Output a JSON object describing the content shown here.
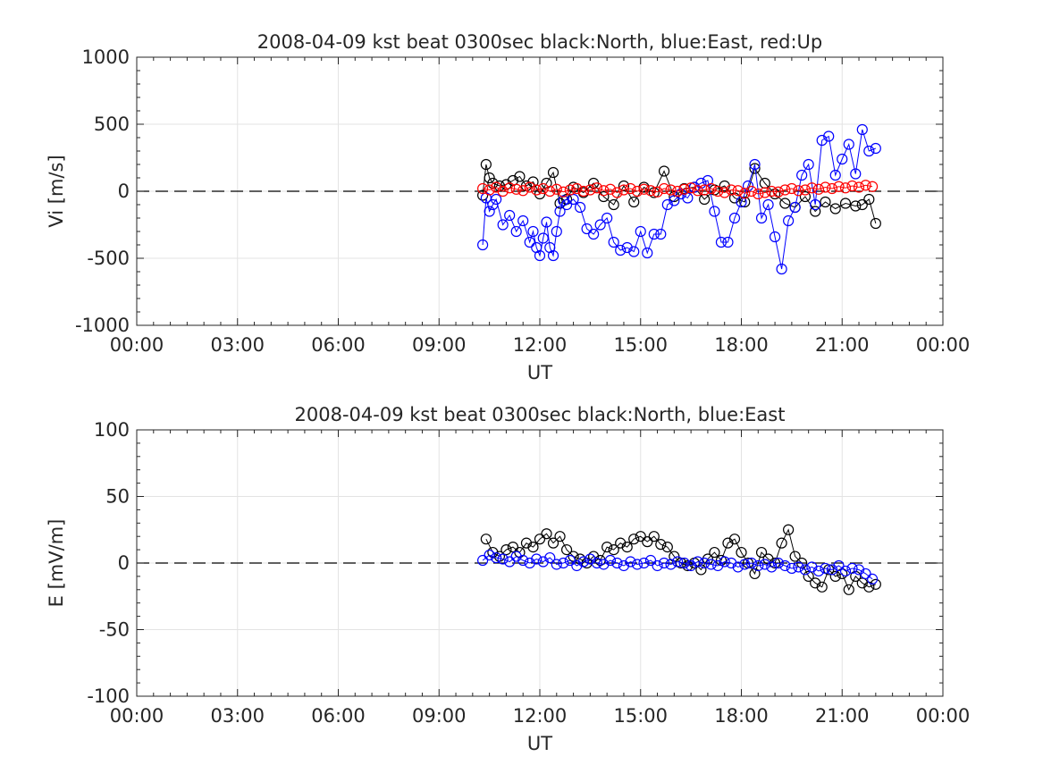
{
  "chart_data": [
    {
      "type": "scatter",
      "title": "2008-04-09 kst beat 0300sec black:North, blue:East, red:Up",
      "xlabel": "UT",
      "ylabel": "Vi [m/s]",
      "xlim": [
        0,
        24
      ],
      "ylim": [
        -1000,
        1000
      ],
      "x_tick_labels": [
        "00:00",
        "03:00",
        "06:00",
        "09:00",
        "12:00",
        "15:00",
        "18:00",
        "21:00",
        "00:00"
      ],
      "y_tick_labels": [
        "-1000",
        "-500",
        "0",
        "500",
        "1000"
      ],
      "grid": true,
      "reference_line": 0,
      "series": [
        {
          "color": "#000000",
          "x": [
            10.3,
            10.4,
            10.5,
            10.6,
            10.8,
            11.0,
            11.2,
            11.4,
            11.6,
            11.8,
            12.0,
            12.2,
            12.4,
            12.6,
            12.8,
            13.0,
            13.3,
            13.6,
            13.9,
            14.2,
            14.5,
            14.8,
            15.1,
            15.4,
            15.7,
            16.0,
            16.3,
            16.6,
            16.9,
            17.2,
            17.5,
            17.8,
            18.1,
            18.4,
            18.7,
            19.0,
            19.3,
            19.6,
            19.9,
            20.2,
            20.5,
            20.8,
            21.1,
            21.4,
            21.6,
            21.8,
            22.0
          ],
          "y": [
            -30,
            200,
            100,
            60,
            40,
            50,
            80,
            110,
            40,
            70,
            -20,
            60,
            140,
            -90,
            -60,
            30,
            -10,
            60,
            -40,
            -100,
            40,
            -80,
            30,
            -10,
            150,
            -40,
            20,
            30,
            -60,
            10,
            40,
            -50,
            -80,
            170,
            60,
            -20,
            -90,
            -120,
            -40,
            -150,
            -80,
            -130,
            -90,
            -110,
            -100,
            -60,
            -240
          ]
        },
        {
          "color": "#0000ff",
          "x": [
            10.3,
            10.4,
            10.5,
            10.6,
            10.7,
            10.9,
            11.1,
            11.3,
            11.5,
            11.7,
            11.8,
            11.9,
            12.0,
            12.1,
            12.2,
            12.3,
            12.4,
            12.5,
            12.6,
            12.7,
            12.8,
            13.0,
            13.2,
            13.4,
            13.6,
            13.8,
            14.0,
            14.2,
            14.4,
            14.6,
            14.8,
            15.0,
            15.2,
            15.4,
            15.6,
            15.8,
            16.0,
            16.2,
            16.4,
            16.6,
            16.8,
            17.0,
            17.2,
            17.4,
            17.6,
            17.8,
            18.0,
            18.2,
            18.4,
            18.6,
            18.8,
            19.0,
            19.2,
            19.4,
            19.6,
            19.8,
            20.0,
            20.2,
            20.4,
            20.6,
            20.8,
            21.0,
            21.2,
            21.4,
            21.6,
            21.8,
            22.0
          ],
          "y": [
            -400,
            -50,
            -150,
            -100,
            -60,
            -250,
            -180,
            -300,
            -220,
            -380,
            -300,
            -420,
            -480,
            -350,
            -230,
            -420,
            -480,
            -300,
            -150,
            -70,
            -100,
            -60,
            -120,
            -280,
            -320,
            -250,
            -200,
            -380,
            -440,
            -420,
            -450,
            -300,
            -460,
            -320,
            -320,
            -100,
            -70,
            -20,
            -50,
            30,
            60,
            80,
            -150,
            -380,
            -380,
            -200,
            -80,
            40,
            200,
            -200,
            -100,
            -340,
            -580,
            -220,
            -120,
            120,
            200,
            -100,
            380,
            410,
            120,
            240,
            350,
            130,
            460,
            300,
            320
          ]
        },
        {
          "color": "#ff0000",
          "x": [
            10.3,
            10.5,
            10.7,
            10.9,
            11.1,
            11.3,
            11.5,
            11.7,
            11.9,
            12.1,
            12.3,
            12.5,
            12.7,
            12.9,
            13.1,
            13.3,
            13.5,
            13.7,
            13.9,
            14.1,
            14.3,
            14.5,
            14.7,
            14.9,
            15.1,
            15.3,
            15.5,
            15.7,
            15.9,
            16.1,
            16.3,
            16.5,
            16.7,
            16.9,
            17.1,
            17.3,
            17.5,
            17.7,
            17.9,
            18.1,
            18.3,
            18.5,
            18.7,
            18.9,
            19.1,
            19.3,
            19.5,
            19.7,
            19.9,
            20.1,
            20.3,
            20.5,
            20.7,
            20.9,
            21.1,
            21.3,
            21.5,
            21.7,
            21.9
          ],
          "y": [
            20,
            10,
            30,
            0,
            25,
            15,
            5,
            30,
            10,
            20,
            0,
            15,
            -5,
            10,
            20,
            0,
            10,
            25,
            5,
            15,
            -10,
            10,
            20,
            0,
            15,
            5,
            -5,
            20,
            10,
            0,
            15,
            25,
            5,
            10,
            20,
            0,
            -10,
            10,
            5,
            -15,
            0,
            -20,
            -10,
            0,
            -5,
            10,
            20,
            5,
            10,
            25,
            15,
            30,
            20,
            35,
            25,
            40,
            30,
            45,
            35
          ]
        }
      ]
    },
    {
      "type": "scatter",
      "title": "2008-04-09 kst beat 0300sec black:North, blue:East",
      "xlabel": "UT",
      "ylabel": "E [mV/m]",
      "xlim": [
        0,
        24
      ],
      "ylim": [
        -100,
        100
      ],
      "x_tick_labels": [
        "00:00",
        "03:00",
        "06:00",
        "09:00",
        "12:00",
        "15:00",
        "18:00",
        "21:00",
        "00:00"
      ],
      "y_tick_labels": [
        "-100",
        "-50",
        "0",
        "50",
        "100"
      ],
      "grid": true,
      "reference_line": 0,
      "series": [
        {
          "color": "#000000",
          "x": [
            10.4,
            10.6,
            10.8,
            11.0,
            11.2,
            11.4,
            11.6,
            11.8,
            12.0,
            12.2,
            12.4,
            12.6,
            12.8,
            13.0,
            13.2,
            13.4,
            13.6,
            13.8,
            14.0,
            14.2,
            14.4,
            14.6,
            14.8,
            15.0,
            15.2,
            15.4,
            15.6,
            15.8,
            16.0,
            16.2,
            16.4,
            16.6,
            16.8,
            17.0,
            17.2,
            17.4,
            17.6,
            17.8,
            18.0,
            18.2,
            18.4,
            18.6,
            18.8,
            19.0,
            19.2,
            19.4,
            19.6,
            19.8,
            20.0,
            20.2,
            20.4,
            20.6,
            20.8,
            21.0,
            21.2,
            21.4,
            21.6,
            21.8,
            22.0
          ],
          "y": [
            18,
            8,
            5,
            10,
            12,
            8,
            15,
            12,
            18,
            22,
            15,
            20,
            10,
            5,
            3,
            0,
            5,
            2,
            12,
            10,
            15,
            12,
            18,
            20,
            16,
            20,
            14,
            12,
            5,
            0,
            -2,
            0,
            -5,
            3,
            8,
            2,
            15,
            18,
            8,
            0,
            -8,
            8,
            3,
            0,
            15,
            25,
            5,
            0,
            -10,
            -15,
            -18,
            -5,
            -10,
            -8,
            -20,
            -10,
            -15,
            -18,
            -16
          ]
        },
        {
          "color": "#0000ff",
          "x": [
            10.3,
            10.5,
            10.7,
            10.9,
            11.1,
            11.3,
            11.5,
            11.7,
            11.9,
            12.1,
            12.3,
            12.5,
            12.7,
            12.9,
            13.1,
            13.3,
            13.5,
            13.7,
            13.9,
            14.1,
            14.3,
            14.5,
            14.7,
            14.9,
            15.1,
            15.3,
            15.5,
            15.7,
            15.9,
            16.1,
            16.3,
            16.5,
            16.7,
            16.9,
            17.1,
            17.3,
            17.5,
            17.7,
            17.9,
            18.1,
            18.3,
            18.5,
            18.7,
            18.9,
            19.1,
            19.3,
            19.5,
            19.7,
            19.9,
            20.1,
            20.3,
            20.5,
            20.7,
            20.9,
            21.1,
            21.3,
            21.5,
            21.7,
            21.9
          ],
          "y": [
            2,
            6,
            4,
            3,
            1,
            5,
            2,
            0,
            3,
            1,
            4,
            -1,
            0,
            2,
            -2,
            1,
            3,
            0,
            -1,
            2,
            0,
            -2,
            1,
            -1,
            0,
            2,
            -2,
            0,
            -1,
            1,
            0,
            -2,
            1,
            0,
            -1,
            -2,
            1,
            0,
            -3,
            -1,
            0,
            -2,
            -1,
            -3,
            0,
            -2,
            -4,
            -3,
            -5,
            -3,
            -6,
            -4,
            -5,
            -2,
            -6,
            -4,
            -5,
            -8,
            -12
          ]
        }
      ]
    }
  ]
}
